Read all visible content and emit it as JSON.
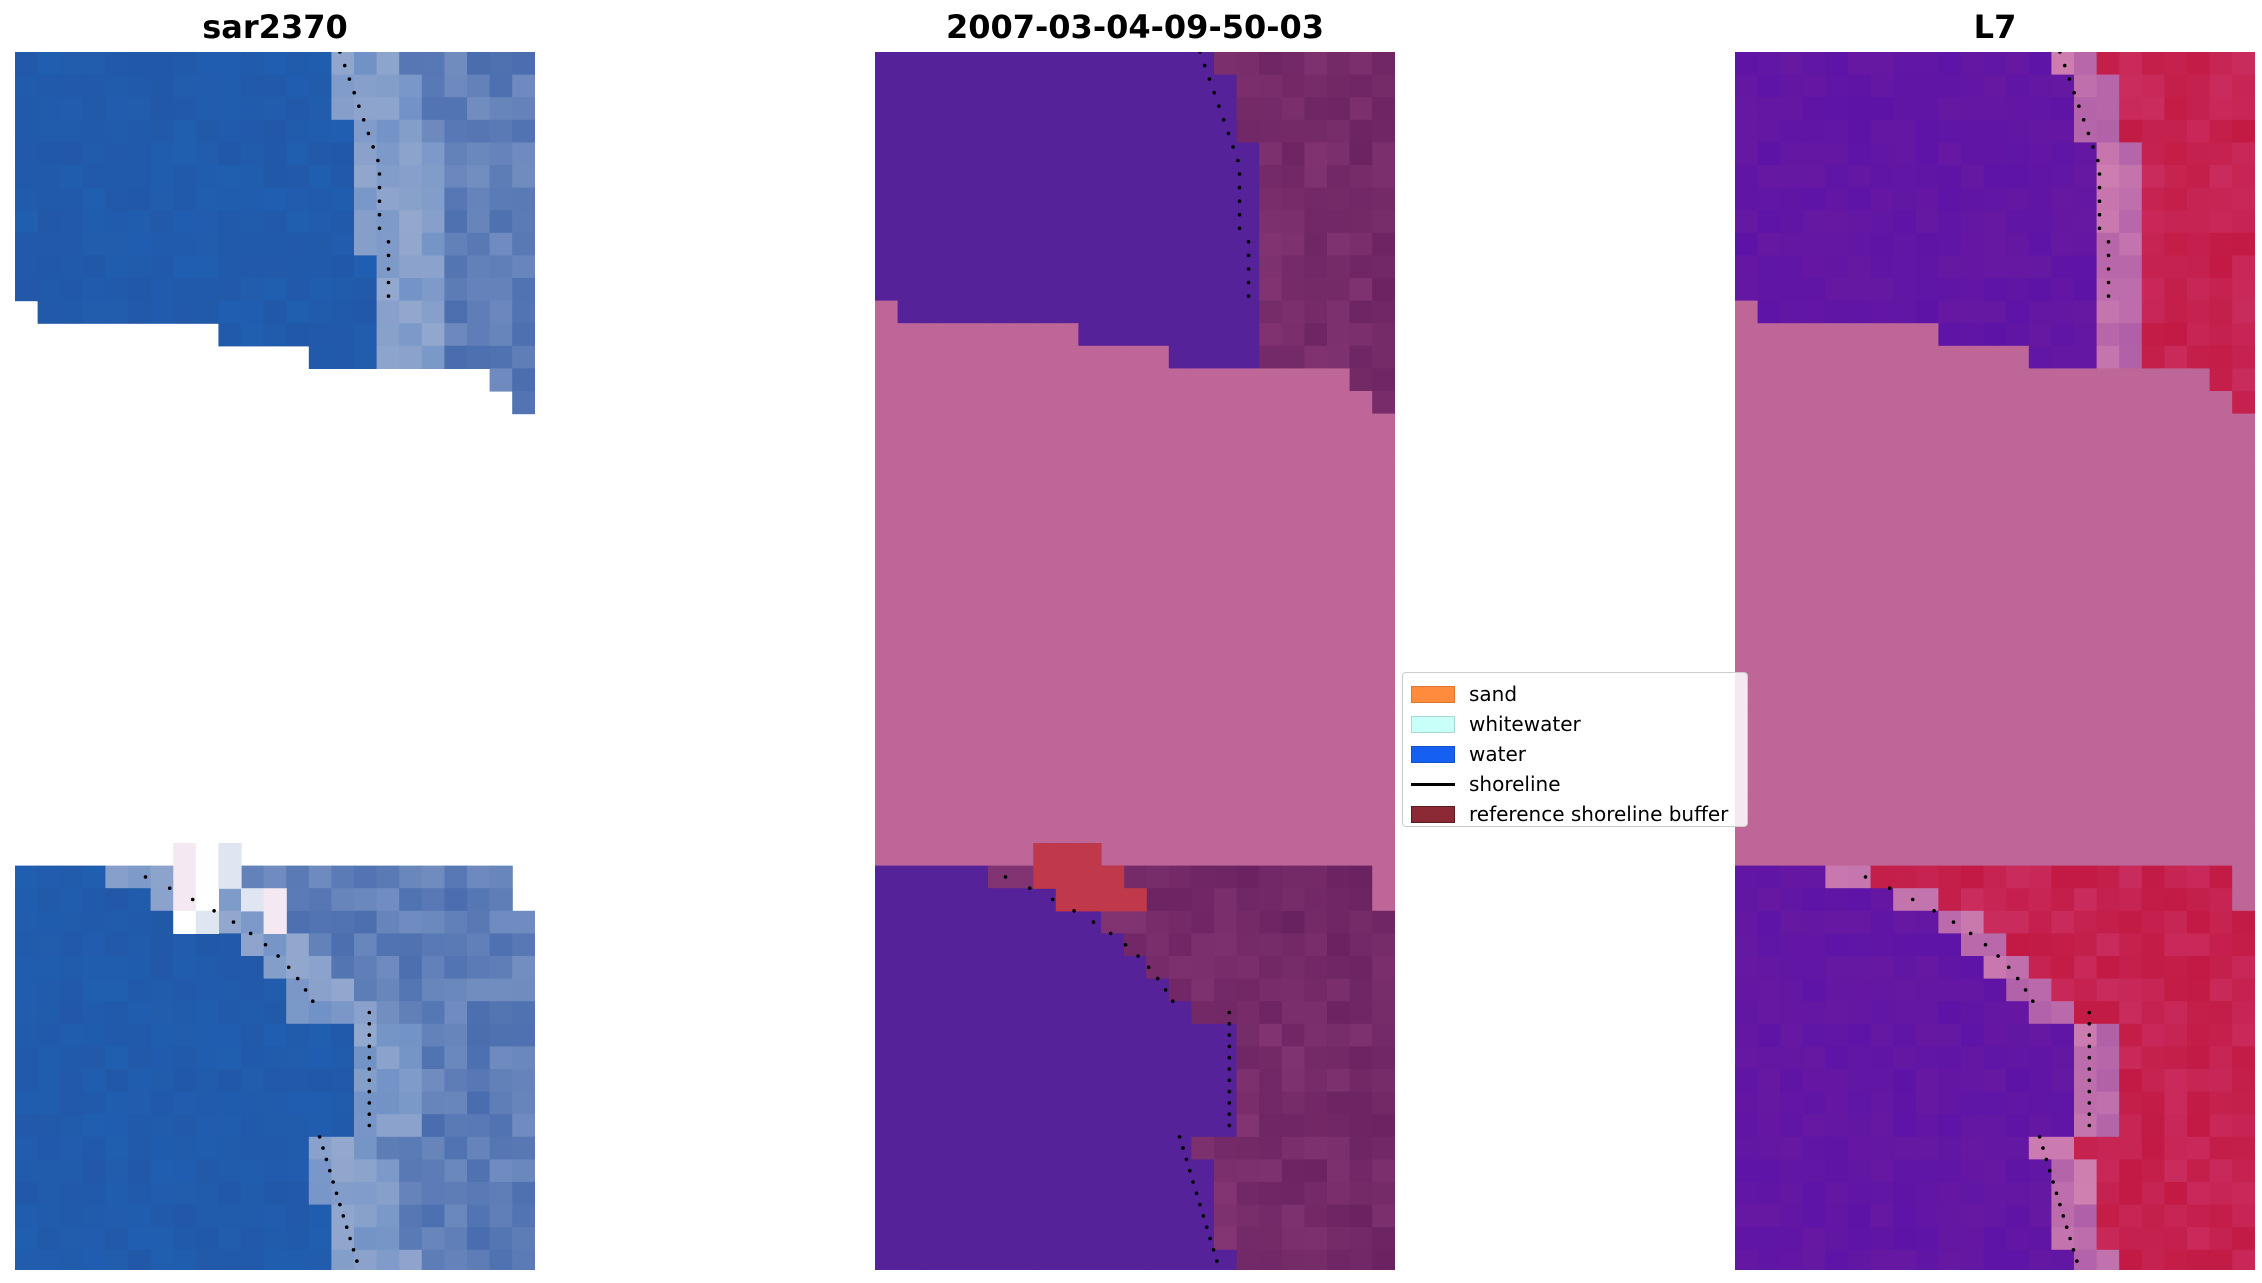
{
  "panels": [
    {
      "title": "sar2370"
    },
    {
      "title": "2007-03-04-09-50-03"
    },
    {
      "title": "L7"
    }
  ],
  "legend": {
    "items": [
      {
        "label": "sand",
        "color": "#ff8c3d",
        "kind": "patch"
      },
      {
        "label": "whitewater",
        "color": "#c8fff8",
        "kind": "patch"
      },
      {
        "label": "water",
        "color": "#1560f0",
        "kind": "patch"
      },
      {
        "label": "shoreline",
        "color": "#000000",
        "kind": "line"
      },
      {
        "label": "reference shoreline buffer",
        "color": "#8b2a35",
        "kind": "patch"
      }
    ]
  },
  "colors": {
    "rgb_water": "#2453a0",
    "rgb_surf": "#9aaccf",
    "class_water": "#552299",
    "class_land": "#8a3a78",
    "cloud_mask": "#bd6697",
    "buffer": "#c0394a",
    "index_low": "#6a1aa0",
    "index_high": "#c0163e"
  }
}
